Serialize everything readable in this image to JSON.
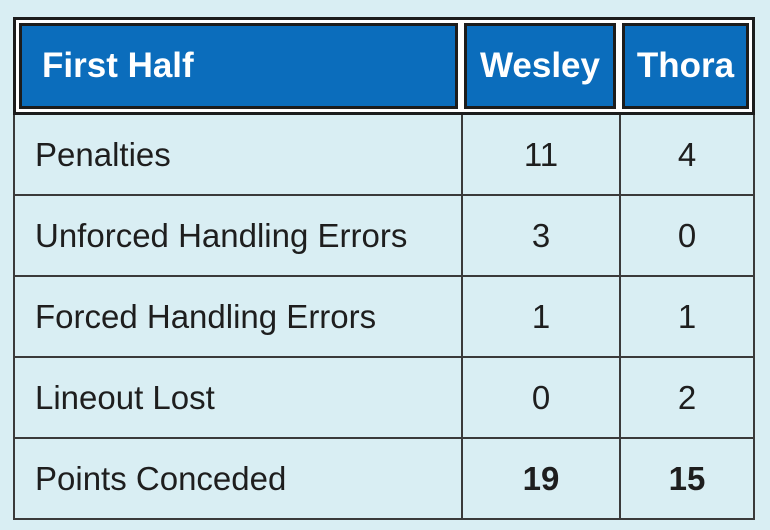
{
  "table": {
    "header": {
      "title": "First Half",
      "team_a": "Wesley",
      "team_b": "Thora"
    },
    "rows": [
      {
        "label": "Penalties",
        "team_a": "11",
        "team_b": "4"
      },
      {
        "label": "Unforced Handling Errors",
        "team_a": "3",
        "team_b": "0"
      },
      {
        "label": "Forced Handling Errors",
        "team_a": "1",
        "team_b": "1"
      },
      {
        "label": "Lineout Lost",
        "team_a": "0",
        "team_b": "2"
      },
      {
        "label": "Points Conceded",
        "team_a": "19",
        "team_b": "15"
      }
    ]
  },
  "colors": {
    "background": "#d9eef3",
    "header_fill": "#0b6dbc",
    "header_text": "#ffffff",
    "border": "#1c1c1c"
  }
}
